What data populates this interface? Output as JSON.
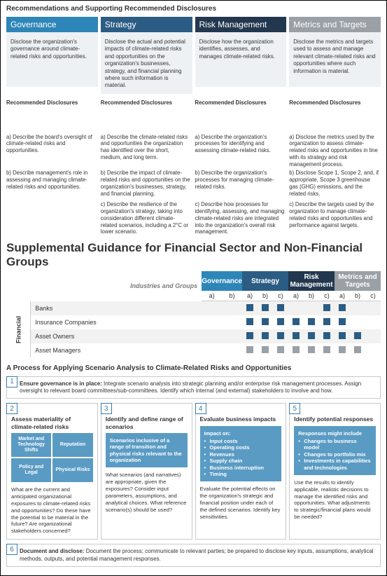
{
  "colors": {
    "governance": "#2e86b8",
    "strategy": "#2b5c84",
    "risk": "#23384f",
    "metrics": "#9aa0a6",
    "matrix_gov": "#2e86b8",
    "matrix_strat": "#2b5c84",
    "matrix_risk": "#23384f",
    "matrix_met": "#9aa0a6",
    "marker_dark": "#2b5c84",
    "marker_grey": "#9aa0a6",
    "accent_blue": "#5a9bc4"
  },
  "section1": {
    "title": "Recommendations and Supporting Recommended Disclosures",
    "pillars": [
      {
        "key": "gov",
        "title": "Governance",
        "color": "#2e86b8",
        "desc": "Disclose the organization's governance around climate-related risks and opportunities."
      },
      {
        "key": "strat",
        "title": "Strategy",
        "color": "#2b5c84",
        "desc": "Disclose the actual and potential impacts of climate-related risks and opportunities on the organization's businesses, strategy, and financial planning where such information is material."
      },
      {
        "key": "risk",
        "title": "Risk Management",
        "color": "#23384f",
        "desc": "Disclose how the organization identifies, assesses, and manages climate-related risks."
      },
      {
        "key": "met",
        "title": "Metrics and Targets",
        "color": "#9aa0a6",
        "desc": "Disclose the metrics and targets used to assess and manage relevant climate-related risks and opportunities where such information is material."
      }
    ],
    "rd_label": "Recommended Disclosures",
    "rows": [
      [
        "a)  Describe the board's oversight of climate-related risks and opportunities.",
        "a)  Describe the climate-related risks and opportunities the organization has identified over the short, medium, and long term.",
        "a)  Describe the organization's processes for identifying and assessing climate-related risks.",
        "a)  Disclose the metrics used by the organization to assess climate-related risks and opportunities in line with its strategy and risk management process."
      ],
      [
        "b)  Describe management's role in assessing and managing climate-related risks and opportunities.",
        "b)  Describe the impact of climate-related risks and opportunities on the organization's businesses, strategy, and financial planning.",
        "b)  Describe the organization's processes for managing climate-related risks.",
        "b)  Disclose Scope 1, Scope 2, and, if appropriate, Scope 3 greenhouse gas (GHG) emissions, and the related risks."
      ],
      [
        "",
        "c)  Describe the resilience of the organization's strategy, taking into consideration different climate-related scenarios, including a 2°C or lower scenario.",
        "c)  Describe how processes for identifying, assessing, and managing climate-related risks are integrated into the organization's overall risk management.",
        "c)  Describe the targets used by the organization to manage climate-related risks and opportunities and performance against targets."
      ]
    ]
  },
  "section2": {
    "title": "Supplemental Guidance for Financial Sector and Non-Financial Groups",
    "ind_label": "Industries and Groups",
    "group_headers": [
      "Governance",
      "Strategy",
      "Risk Management",
      "Metrics and Targets"
    ],
    "sub_headers": [
      [
        "a)",
        "b)"
      ],
      [
        "a)",
        "b)",
        "c)"
      ],
      [
        "a)",
        "b)",
        "c)"
      ],
      [
        "a)",
        "b)",
        "c)"
      ]
    ],
    "vcat": "Financial",
    "rows": [
      {
        "label": "Banks",
        "cells": [
          0,
          0,
          1,
          1,
          1,
          0,
          0,
          1,
          1,
          0,
          0
        ],
        "color": "#2b5c84"
      },
      {
        "label": "Insurance Companies",
        "cells": [
          0,
          0,
          1,
          1,
          1,
          1,
          1,
          1,
          1,
          0,
          0
        ],
        "color": "#2b5c84"
      },
      {
        "label": "Asset Owners",
        "cells": [
          0,
          0,
          1,
          1,
          1,
          1,
          1,
          1,
          1,
          1,
          0
        ],
        "color": "#2b5c84"
      },
      {
        "label": "Asset Managers",
        "cells": [
          0,
          0,
          1,
          1,
          1,
          1,
          1,
          1,
          1,
          1,
          0
        ],
        "color": "#9aa0a6"
      }
    ]
  },
  "section3": {
    "title": "A Process for Applying Scenario Analysis to Climate-Related Risks and Opportunities",
    "step1": {
      "num": "1",
      "bold": "Ensure governance is in place:",
      "text": " Integrate scenario analysis into strategic planning and/or enterprise risk management processes. Assign oversight to relevant board committees/sub-committees. Identify which internal (and external) stakeholders to involve and how."
    },
    "cols": [
      {
        "num": "2",
        "title": "Assess materiality of climate-related risks",
        "quad": [
          "Market and Technology Shifts",
          "Reputation",
          "Policy and Legal",
          "Physical Risks"
        ],
        "body": "What are the current and anticipated organizational exposures to climate-related risks and opportunities? Do these have the potential to be material in the future? Are organizational stakeholders concerned?"
      },
      {
        "num": "3",
        "title": "Identify and define range of scenarios",
        "box": "Scenarios inclusive of a range of transition and physical risks relevant to the organization",
        "body": "What scenarios (and narratives) are appropriate, given the exposures? Consider input parameters, assumptions, and analytical choices. What reference scenario(s) should be used?"
      },
      {
        "num": "4",
        "title": "Evaluate business impacts",
        "box_title": "Impact on:",
        "box_items": [
          "Input costs",
          "Operating costs",
          "Revenues",
          "Supply chain",
          "Business interruption",
          "Timing"
        ],
        "body": "Evaluate the potential effects on the organization's strategic and financial position under each of the defined scenarios. Identify key sensitivities."
      },
      {
        "num": "5",
        "title": "Identify potential responses",
        "box_title": "Responses might include",
        "box_items": [
          "Changes to business model",
          "Changes to portfolio mix",
          "Investments in capabilities and technologies"
        ],
        "body": "Use the results to identify applicable, realistic decisions to manage the identified risks and opportunities. What adjustments to strategic/financial plans would be needed?"
      }
    ],
    "step6": {
      "num": "6",
      "bold": "Document and disclose:",
      "text": " Document the process; communicate to relevant parties; be prepared to disclose key inputs, assumptions, analytical methods, outputs, and potential management responses."
    }
  }
}
